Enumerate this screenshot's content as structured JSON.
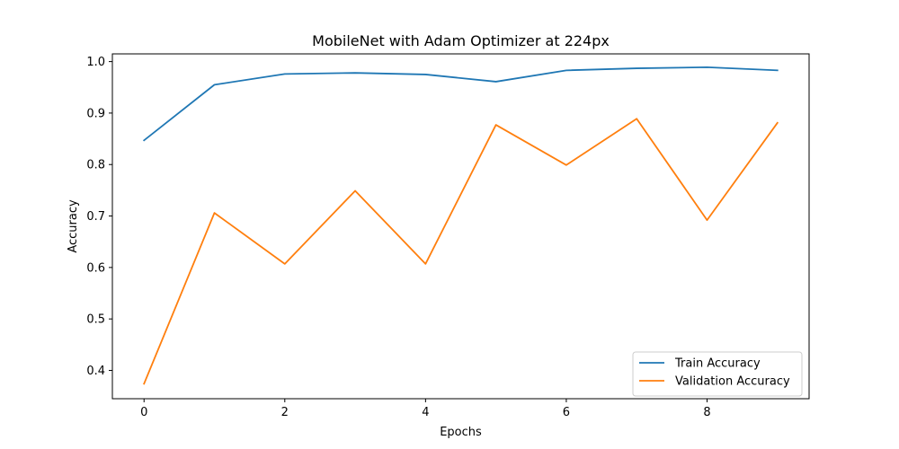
{
  "chart_data": {
    "type": "line",
    "title": "MobileNet with Adam Optimizer at 224px",
    "xlabel": "Epochs",
    "ylabel": "Accuracy",
    "x": [
      0,
      1,
      2,
      3,
      4,
      5,
      6,
      7,
      8,
      9
    ],
    "xlim": [
      -0.45,
      9.45
    ],
    "ylim": [
      0.345,
      1.015
    ],
    "xticks": [
      "0",
      "2",
      "4",
      "6",
      "8"
    ],
    "yticks": [
      "0.4",
      "0.5",
      "0.6",
      "0.7",
      "0.8",
      "0.9",
      "1.0"
    ],
    "grid": false,
    "legend_position": "lower-right",
    "series": [
      {
        "name": "Train Accuracy",
        "color": "#1f77b4",
        "values": [
          0.847,
          0.955,
          0.976,
          0.978,
          0.975,
          0.961,
          0.983,
          0.987,
          0.989,
          0.983
        ]
      },
      {
        "name": "Validation Accuracy",
        "color": "#ff7f0e",
        "values": [
          0.374,
          0.706,
          0.607,
          0.749,
          0.607,
          0.877,
          0.799,
          0.889,
          0.692,
          0.881
        ]
      }
    ]
  }
}
